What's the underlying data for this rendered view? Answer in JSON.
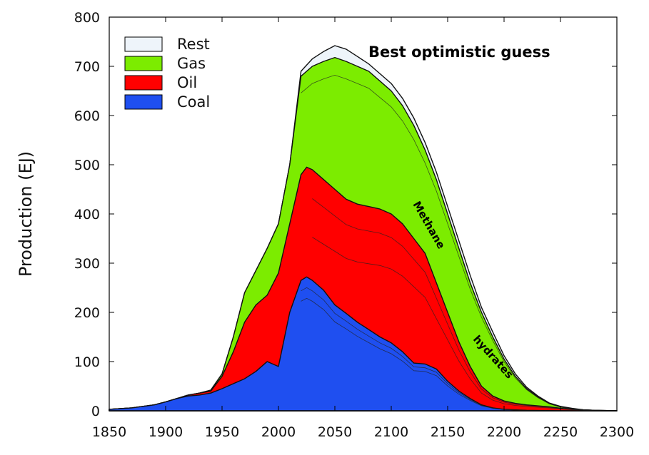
{
  "chart_data": {
    "type": "area",
    "title": "Best optimistic guess",
    "xlabel": "",
    "ylabel": "Production (EJ)",
    "xlim": [
      1850,
      2300
    ],
    "ylim": [
      0,
      800
    ],
    "x_ticks": [
      1850,
      1900,
      1950,
      2000,
      2050,
      2100,
      2150,
      2200,
      2250,
      2300
    ],
    "y_ticks": [
      0,
      100,
      200,
      300,
      400,
      500,
      600,
      700,
      800
    ],
    "grid": false,
    "legend_position": "top-left",
    "legend": [
      {
        "name": "Rest",
        "color": "#eef4fa"
      },
      {
        "name": "Gas",
        "color": "#7cec00"
      },
      {
        "name": "Oil",
        "color": "#ff0000"
      },
      {
        "name": "Coal",
        "color": "#1f4ff0"
      }
    ],
    "annotations": [
      "Methane",
      "hydrates"
    ],
    "series": [
      {
        "name": "Coal",
        "color": "#1f4ff0",
        "points": [
          [
            1850,
            3
          ],
          [
            1870,
            6
          ],
          [
            1890,
            12
          ],
          [
            1900,
            18
          ],
          [
            1910,
            25
          ],
          [
            1920,
            30
          ],
          [
            1930,
            32
          ],
          [
            1940,
            36
          ],
          [
            1950,
            45
          ],
          [
            1960,
            55
          ],
          [
            1970,
            65
          ],
          [
            1980,
            80
          ],
          [
            1990,
            100
          ],
          [
            2000,
            90
          ],
          [
            2010,
            200
          ],
          [
            2020,
            265
          ],
          [
            2025,
            272
          ],
          [
            2030,
            265
          ],
          [
            2040,
            245
          ],
          [
            2050,
            215
          ],
          [
            2060,
            198
          ],
          [
            2070,
            180
          ],
          [
            2080,
            165
          ],
          [
            2090,
            150
          ],
          [
            2100,
            138
          ],
          [
            2110,
            120
          ],
          [
            2120,
            97
          ],
          [
            2130,
            95
          ],
          [
            2140,
            85
          ],
          [
            2150,
            60
          ],
          [
            2160,
            40
          ],
          [
            2170,
            25
          ],
          [
            2180,
            12
          ],
          [
            2190,
            6
          ],
          [
            2200,
            3
          ],
          [
            2220,
            1
          ],
          [
            2250,
            0
          ],
          [
            2300,
            0
          ]
        ]
      },
      {
        "name": "Oil",
        "color": "#ff0000",
        "points": [
          [
            1850,
            3
          ],
          [
            1870,
            6
          ],
          [
            1890,
            12
          ],
          [
            1900,
            18
          ],
          [
            1910,
            25
          ],
          [
            1920,
            32
          ],
          [
            1930,
            36
          ],
          [
            1940,
            40
          ],
          [
            1950,
            70
          ],
          [
            1960,
            120
          ],
          [
            1970,
            180
          ],
          [
            1980,
            215
          ],
          [
            1990,
            235
          ],
          [
            2000,
            280
          ],
          [
            2010,
            380
          ],
          [
            2020,
            480
          ],
          [
            2025,
            495
          ],
          [
            2030,
            490
          ],
          [
            2040,
            470
          ],
          [
            2050,
            450
          ],
          [
            2060,
            430
          ],
          [
            2070,
            420
          ],
          [
            2080,
            415
          ],
          [
            2090,
            410
          ],
          [
            2100,
            400
          ],
          [
            2110,
            380
          ],
          [
            2120,
            350
          ],
          [
            2130,
            320
          ],
          [
            2140,
            260
          ],
          [
            2150,
            200
          ],
          [
            2160,
            140
          ],
          [
            2170,
            90
          ],
          [
            2180,
            50
          ],
          [
            2190,
            30
          ],
          [
            2200,
            20
          ],
          [
            2210,
            15
          ],
          [
            2220,
            12
          ],
          [
            2230,
            10
          ],
          [
            2240,
            8
          ],
          [
            2250,
            5
          ],
          [
            2260,
            3
          ],
          [
            2280,
            1
          ],
          [
            2300,
            0
          ]
        ]
      },
      {
        "name": "Gas",
        "color": "#7cec00",
        "points": [
          [
            1850,
            3
          ],
          [
            1870,
            6
          ],
          [
            1890,
            12
          ],
          [
            1900,
            18
          ],
          [
            1910,
            25
          ],
          [
            1920,
            32
          ],
          [
            1930,
            36
          ],
          [
            1940,
            42
          ],
          [
            1950,
            75
          ],
          [
            1960,
            150
          ],
          [
            1970,
            240
          ],
          [
            1980,
            285
          ],
          [
            1990,
            330
          ],
          [
            2000,
            380
          ],
          [
            2010,
            500
          ],
          [
            2020,
            680
          ],
          [
            2030,
            700
          ],
          [
            2040,
            710
          ],
          [
            2050,
            718
          ],
          [
            2060,
            710
          ],
          [
            2070,
            700
          ],
          [
            2080,
            690
          ],
          [
            2090,
            670
          ],
          [
            2100,
            650
          ],
          [
            2110,
            620
          ],
          [
            2120,
            580
          ],
          [
            2130,
            530
          ],
          [
            2140,
            470
          ],
          [
            2150,
            400
          ],
          [
            2160,
            330
          ],
          [
            2170,
            260
          ],
          [
            2180,
            200
          ],
          [
            2190,
            150
          ],
          [
            2200,
            105
          ],
          [
            2210,
            70
          ],
          [
            2220,
            45
          ],
          [
            2230,
            28
          ],
          [
            2240,
            15
          ],
          [
            2250,
            8
          ],
          [
            2260,
            4
          ],
          [
            2270,
            2
          ],
          [
            2280,
            1
          ],
          [
            2300,
            0
          ]
        ]
      },
      {
        "name": "Rest",
        "color": "#eef4fa",
        "points": [
          [
            1850,
            3
          ],
          [
            1870,
            6
          ],
          [
            1890,
            12
          ],
          [
            1900,
            18
          ],
          [
            1910,
            25
          ],
          [
            1920,
            32
          ],
          [
            1930,
            36
          ],
          [
            1940,
            42
          ],
          [
            1950,
            75
          ],
          [
            1960,
            150
          ],
          [
            1970,
            240
          ],
          [
            1980,
            285
          ],
          [
            1990,
            330
          ],
          [
            2000,
            380
          ],
          [
            2010,
            500
          ],
          [
            2020,
            690
          ],
          [
            2030,
            715
          ],
          [
            2040,
            730
          ],
          [
            2050,
            742
          ],
          [
            2060,
            735
          ],
          [
            2070,
            720
          ],
          [
            2080,
            705
          ],
          [
            2090,
            685
          ],
          [
            2100,
            665
          ],
          [
            2110,
            635
          ],
          [
            2120,
            595
          ],
          [
            2130,
            545
          ],
          [
            2140,
            485
          ],
          [
            2150,
            415
          ],
          [
            2160,
            345
          ],
          [
            2170,
            275
          ],
          [
            2180,
            210
          ],
          [
            2190,
            160
          ],
          [
            2200,
            112
          ],
          [
            2210,
            75
          ],
          [
            2220,
            48
          ],
          [
            2230,
            30
          ],
          [
            2240,
            16
          ],
          [
            2250,
            9
          ],
          [
            2260,
            5
          ],
          [
            2270,
            2
          ],
          [
            2280,
            1
          ],
          [
            2300,
            0
          ]
        ]
      }
    ]
  }
}
